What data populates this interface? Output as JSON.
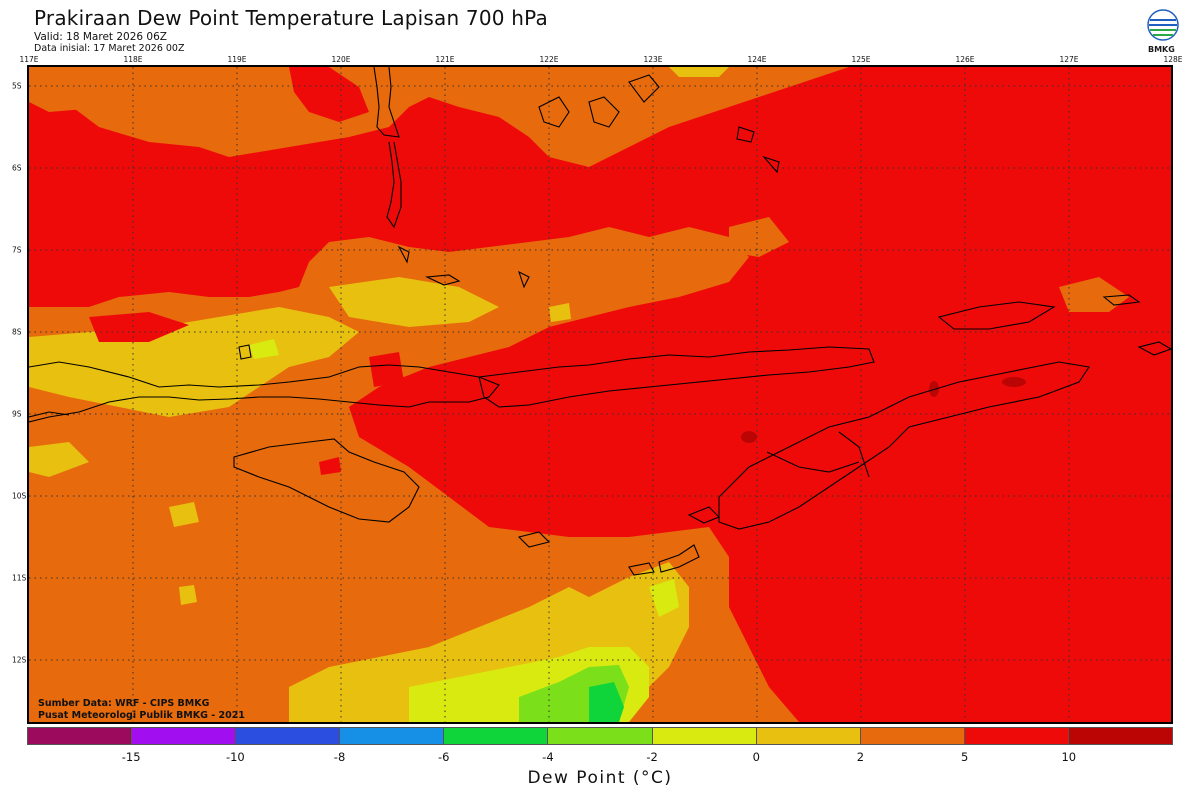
{
  "header": {
    "title": "Prakiraan Dew Point Temperature Lapisan 700 hPa",
    "valid": "Valid: 18 Maret 2026 06Z",
    "init": "Data inisial: 17 Maret 2026 00Z",
    "logo_text": "BMKG"
  },
  "axes": {
    "lon_labels": [
      "117E",
      "118E",
      "119E",
      "120E",
      "121E",
      "122E",
      "123E",
      "124E",
      "125E",
      "126E",
      "127E",
      "128E"
    ],
    "lat_labels": [
      "5S",
      "6S",
      "7S",
      "8S",
      "9S",
      "10S",
      "11S",
      "12S"
    ]
  },
  "footer": {
    "source": "Sumber Data: WRF - CIPS BMKG",
    "org": "Pusat Meteorologi Publik BMKG - 2021"
  },
  "colorbar": {
    "title": "Dew Point (°C)",
    "colors": [
      "#9b0a5d",
      "#a10ff0",
      "#2c4ee0",
      "#1590e6",
      "#0fd43a",
      "#7be01a",
      "#d8ea10",
      "#e8c010",
      "#e76a0c",
      "#ef0a0a",
      "#bb0505"
    ],
    "labels": [
      "-15",
      "-10",
      "-8",
      "-6",
      "-4",
      "-2",
      "0",
      "2",
      "5",
      "10"
    ]
  }
}
